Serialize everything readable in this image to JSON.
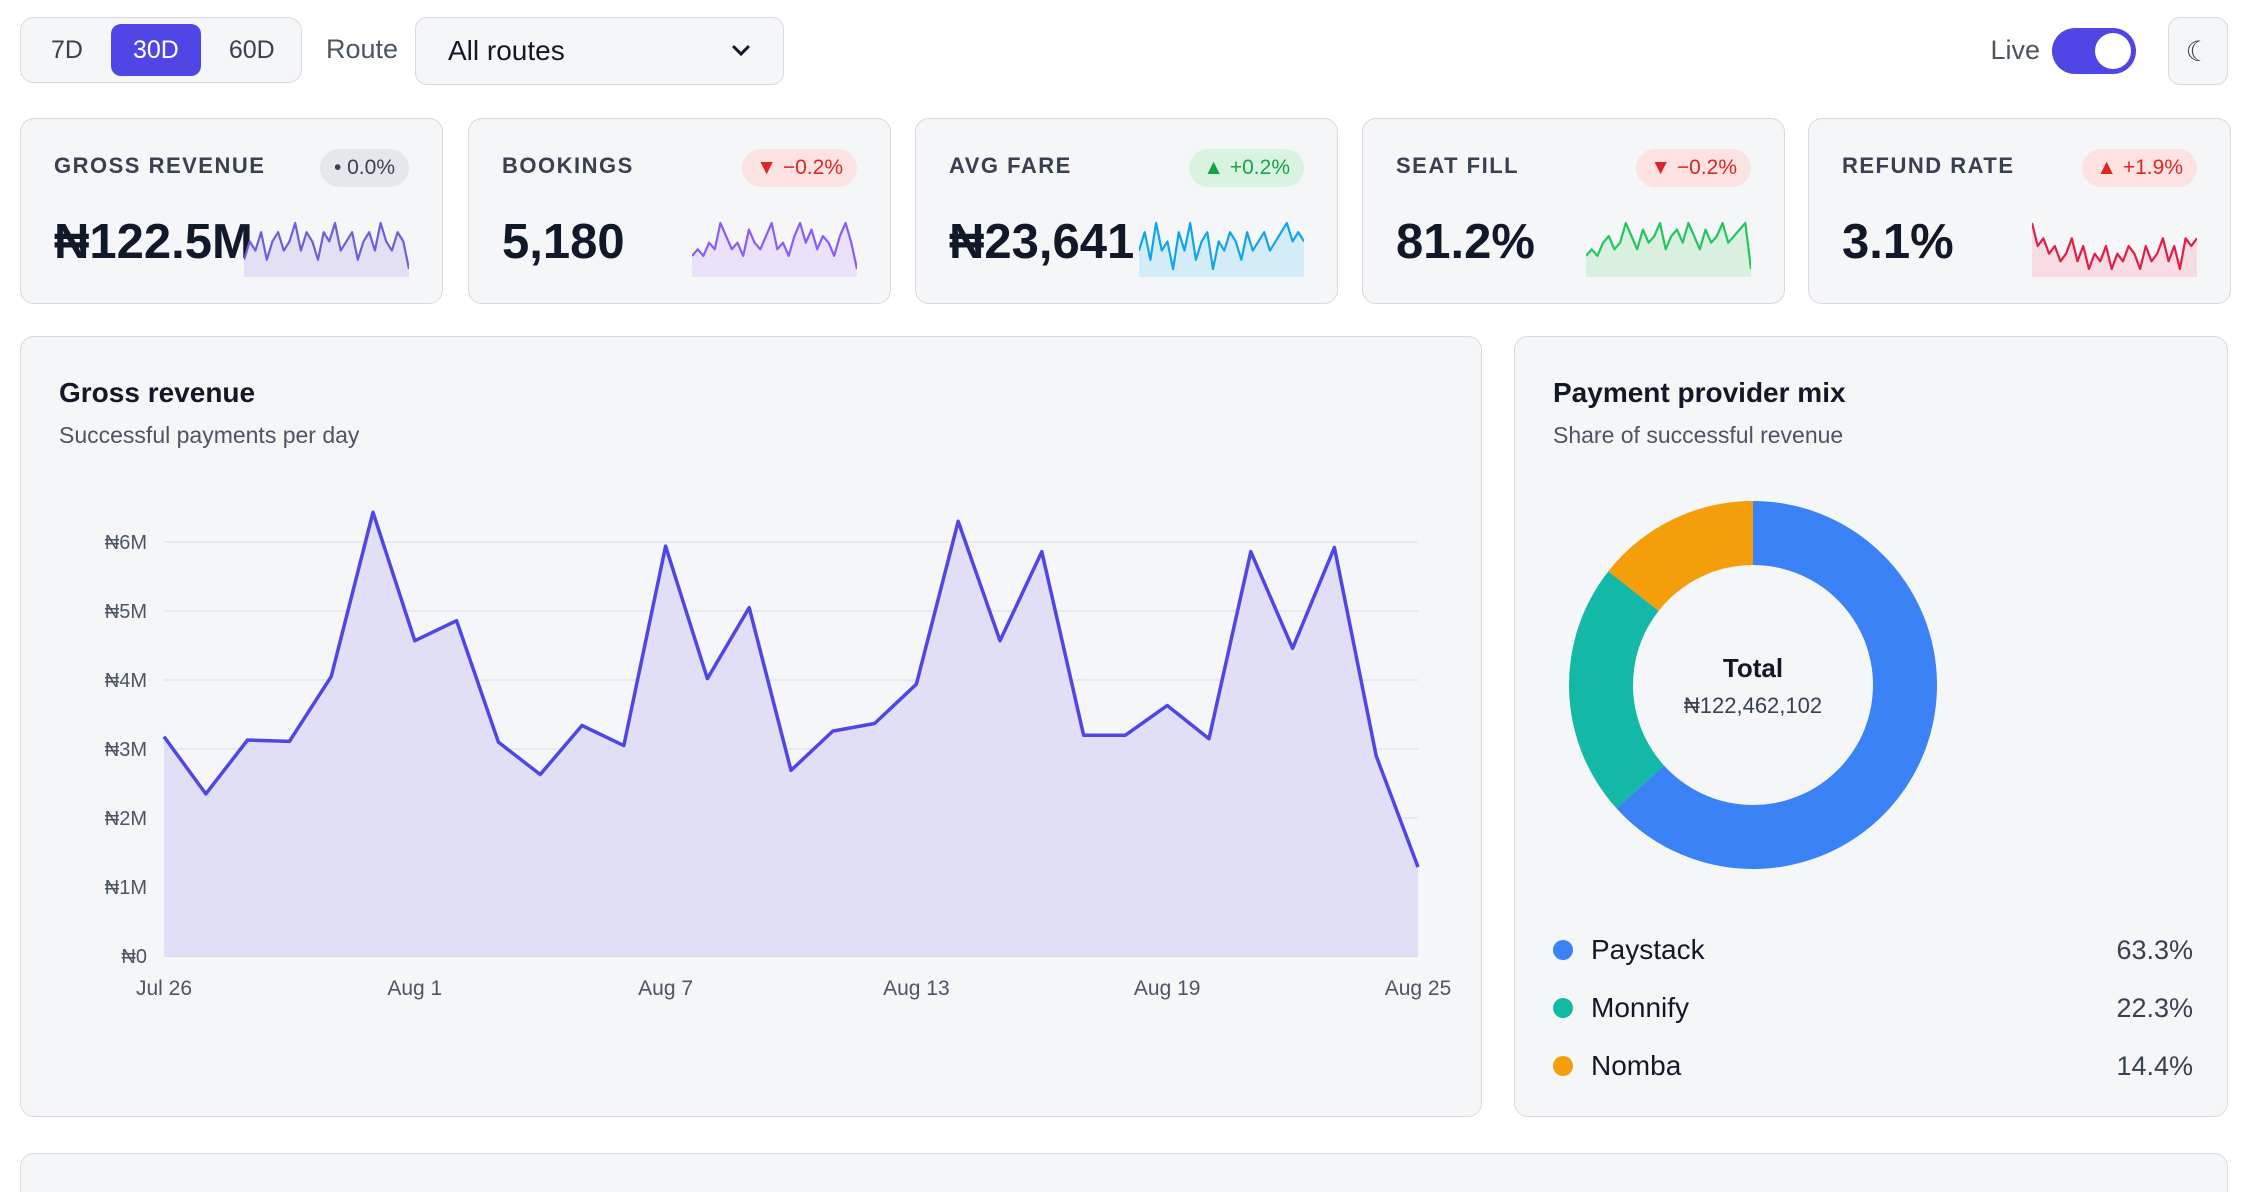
{
  "toolbar": {
    "ranges": [
      "7D",
      "30D",
      "60D"
    ],
    "active_range": "30D",
    "route_label": "Route",
    "route_value": "All routes",
    "live_label": "Live",
    "live_on": true,
    "theme_icon": "moon-icon",
    "theme_glyph": "☾"
  },
  "kpis": [
    {
      "label": "GROSS REVENUE",
      "value": "₦122.5M",
      "badge": "• 0.0%",
      "trend": "neutral",
      "color": "#6d5fd6",
      "fill": "#e3e0f6",
      "spark": [
        3,
        5,
        4,
        6,
        3,
        5,
        6,
        4,
        5,
        7,
        4,
        6,
        5,
        3,
        6,
        5,
        7,
        4,
        5,
        6,
        3,
        5,
        6,
        4,
        7,
        5,
        4,
        6,
        5,
        2
      ]
    },
    {
      "label": "BOOKINGS",
      "value": "5,180",
      "badge": "▼ −0.2%",
      "trend": "down",
      "color": "#8b5cf6",
      "fill": "#e9e2fa",
      "spark": [
        3,
        4,
        3,
        5,
        4,
        8,
        6,
        4,
        5,
        3,
        7,
        5,
        4,
        6,
        8,
        4,
        5,
        3,
        6,
        8,
        5,
        7,
        4,
        6,
        5,
        3,
        6,
        8,
        5,
        1
      ]
    },
    {
      "label": "AVG FARE",
      "value": "₦23,641",
      "badge": "▲ +0.2%",
      "trend": "up",
      "color": "#0ea5e9",
      "fill": "#d4ecf7",
      "spark": [
        4,
        6,
        3,
        7,
        4,
        5,
        2,
        6,
        4,
        7,
        3,
        5,
        6,
        2,
        5,
        4,
        6,
        5,
        3,
        6,
        4,
        5,
        6,
        4,
        5,
        6,
        7,
        5,
        6,
        5
      ]
    },
    {
      "label": "SEAT FILL",
      "value": "81.2%",
      "badge": "▼ −0.2%",
      "trend": "down",
      "color": "#22c55e",
      "fill": "#d9f0e0",
      "spark": [
        3,
        4,
        3,
        5,
        6,
        4,
        5,
        8,
        6,
        4,
        7,
        5,
        6,
        8,
        4,
        6,
        7,
        5,
        8,
        6,
        4,
        7,
        5,
        6,
        8,
        5,
        6,
        7,
        8,
        1
      ]
    },
    {
      "label": "REFUND RATE",
      "value": "3.1%",
      "badge": "▲ +1.9%",
      "trend": "up-bad",
      "color": "#e11d48",
      "fill": "#f7dde3",
      "spark": [
        8,
        5,
        6,
        4,
        5,
        3,
        4,
        6,
        3,
        5,
        2,
        4,
        3,
        5,
        2,
        4,
        3,
        5,
        4,
        2,
        5,
        3,
        4,
        6,
        3,
        5,
        2,
        6,
        5,
        6
      ]
    }
  ],
  "revenue_panel": {
    "title": "Gross revenue",
    "subtitle": "Successful payments per day"
  },
  "chart_data": {
    "type": "area",
    "x_tick_labels": [
      "Jul 26",
      "Aug 1",
      "Aug 7",
      "Aug 13",
      "Aug 19",
      "Aug 25"
    ],
    "y_tick_labels": [
      "₦0",
      "₦1M",
      "₦2M",
      "₦3M",
      "₦4M",
      "₦5M",
      "₦6M"
    ],
    "ylim": [
      0,
      6.4
    ],
    "y_unit": "₦M",
    "grid": true,
    "x": [
      "Jul 26",
      "Jul 27",
      "Jul 28",
      "Jul 29",
      "Jul 30",
      "Jul 31",
      "Aug 1",
      "Aug 2",
      "Aug 3",
      "Aug 4",
      "Aug 5",
      "Aug 6",
      "Aug 7",
      "Aug 8",
      "Aug 9",
      "Aug 10",
      "Aug 11",
      "Aug 12",
      "Aug 13",
      "Aug 14",
      "Aug 15",
      "Aug 16",
      "Aug 17",
      "Aug 18",
      "Aug 19",
      "Aug 20",
      "Aug 21",
      "Aug 22",
      "Aug 23",
      "Aug 24",
      "Aug 25"
    ],
    "values": [
      3.18,
      2.35,
      3.13,
      3.11,
      4.05,
      6.43,
      4.57,
      4.86,
      3.1,
      2.63,
      3.34,
      3.05,
      5.94,
      4.02,
      5.05,
      2.69,
      3.26,
      3.37,
      3.94,
      6.3,
      4.57,
      5.86,
      3.2,
      3.2,
      3.63,
      3.15,
      5.86,
      4.46,
      5.92,
      2.9,
      1.29
    ],
    "line_color": "#4f46e5",
    "fill_color": "#e0dff5"
  },
  "provider_panel": {
    "title": "Payment provider mix",
    "subtitle": "Share of successful revenue",
    "total_label": "Total",
    "total_value": "₦122,462,102",
    "providers": [
      {
        "name": "Paystack",
        "pct": "63.3%",
        "share": 63.3,
        "color": "#3b82f6"
      },
      {
        "name": "Monnify",
        "pct": "22.3%",
        "share": 22.3,
        "color": "#14b8a6"
      },
      {
        "name": "Nomba",
        "pct": "14.4%",
        "share": 14.4,
        "color": "#f59e0b"
      }
    ]
  }
}
